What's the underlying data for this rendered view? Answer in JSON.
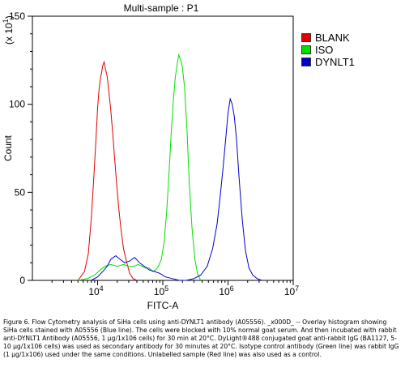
{
  "chart_data": {
    "type": "line",
    "title": "Multi-sample : P1",
    "xlabel": "FITC-A",
    "ylabel": "Count",
    "y_multiplier": "(x 10",
    "y_multiplier_exp": "1",
    "x_scale": "log",
    "xlim": [
      1000,
      10000000
    ],
    "ylim": [
      0,
      150
    ],
    "grid": false,
    "legend_position": "top-right",
    "x_ticks": [
      {
        "base": "10",
        "exp": "4",
        "value": 10000
      },
      {
        "base": "10",
        "exp": "5",
        "value": 100000
      },
      {
        "base": "10",
        "exp": "6",
        "value": 1000000
      },
      {
        "base": "10",
        "exp": "7",
        "value": 10000000
      }
    ],
    "y_ticks": [
      "0",
      "50",
      "100",
      "150"
    ],
    "series": [
      {
        "name": "BLANK",
        "color": "#e00000",
        "x": [
          5000,
          6300,
          7200,
          8000,
          8800,
          9500,
          10000,
          10500,
          11000,
          11500,
          12000,
          12600,
          13200,
          14000,
          14800,
          15800,
          17000,
          18200,
          19500,
          21000,
          23000,
          25000,
          28000,
          31000,
          35000,
          40000
        ],
        "y": [
          0,
          5,
          15,
          35,
          60,
          82,
          98,
          108,
          114,
          118,
          122,
          124,
          120,
          116,
          108,
          98,
          84,
          70,
          56,
          42,
          28,
          18,
          10,
          4,
          1,
          0
        ]
      },
      {
        "name": "ISO",
        "color": "#00e000",
        "x": [
          5000,
          7000,
          9000,
          11000,
          13000,
          16000,
          20000,
          25000,
          30000,
          36000,
          42000,
          48000,
          55000,
          62000,
          70000,
          78000,
          86000,
          95000,
          105000,
          115000,
          125000,
          135000,
          145000,
          155000,
          165000,
          175000,
          185000,
          198000,
          215000,
          235000,
          255000,
          280000,
          310000,
          340000,
          380000
        ],
        "y": [
          0,
          1,
          3,
          6,
          8,
          9,
          8,
          9,
          8,
          8,
          9,
          8,
          7,
          7,
          5,
          6,
          8,
          12,
          22,
          40,
          62,
          85,
          102,
          115,
          122,
          128,
          126,
          122,
          110,
          85,
          55,
          30,
          12,
          4,
          0
        ]
      },
      {
        "name": "DYNLT1",
        "color": "#0000cc",
        "x": [
          8000,
          10000,
          12000,
          14000,
          16000,
          19000,
          22000,
          26000,
          31000,
          37000,
          44000,
          52000,
          62000,
          75000,
          90000,
          110000,
          140000,
          180000,
          230000,
          300000,
          380000,
          480000,
          580000,
          680000,
          760000,
          840000,
          920000,
          1000000,
          1080000,
          1160000,
          1250000,
          1350000,
          1480000,
          1650000,
          1850000,
          2100000,
          2400000,
          2800000,
          3300000
        ],
        "y": [
          0,
          2,
          5,
          8,
          12,
          14,
          12,
          10,
          11,
          13,
          10,
          8,
          6,
          5,
          4,
          2,
          1,
          0,
          0,
          1,
          3,
          8,
          18,
          32,
          48,
          64,
          80,
          95,
          103,
          100,
          93,
          80,
          58,
          35,
          17,
          7,
          3,
          1,
          0
        ]
      }
    ]
  },
  "caption": "Figure 6. Flow Cytometry analysis of SiHa cells using anti-DYNLT1 antibody (A05556). _x000D_ -- Overlay histogram showing SiHa cells stained with A05556 (Blue line). The cells were blocked with 10% normal goat serum. And then incubated with rabbit anti-DYNLT1 Antibody (A05556, 1 μg/1x106 cells) for 30 min at 20°C. DyLight®488 conjugated goat anti-rabbit IgG (BA1127, 5-10 μg/1x106 cells) was used as secondary antibody for 30 minutes at 20°C. Isotype control antibody (Green line) was rabbit IgG (1 μg/1x106) used under the same conditions. Unlabelled sample (Red line) was also used as a control."
}
